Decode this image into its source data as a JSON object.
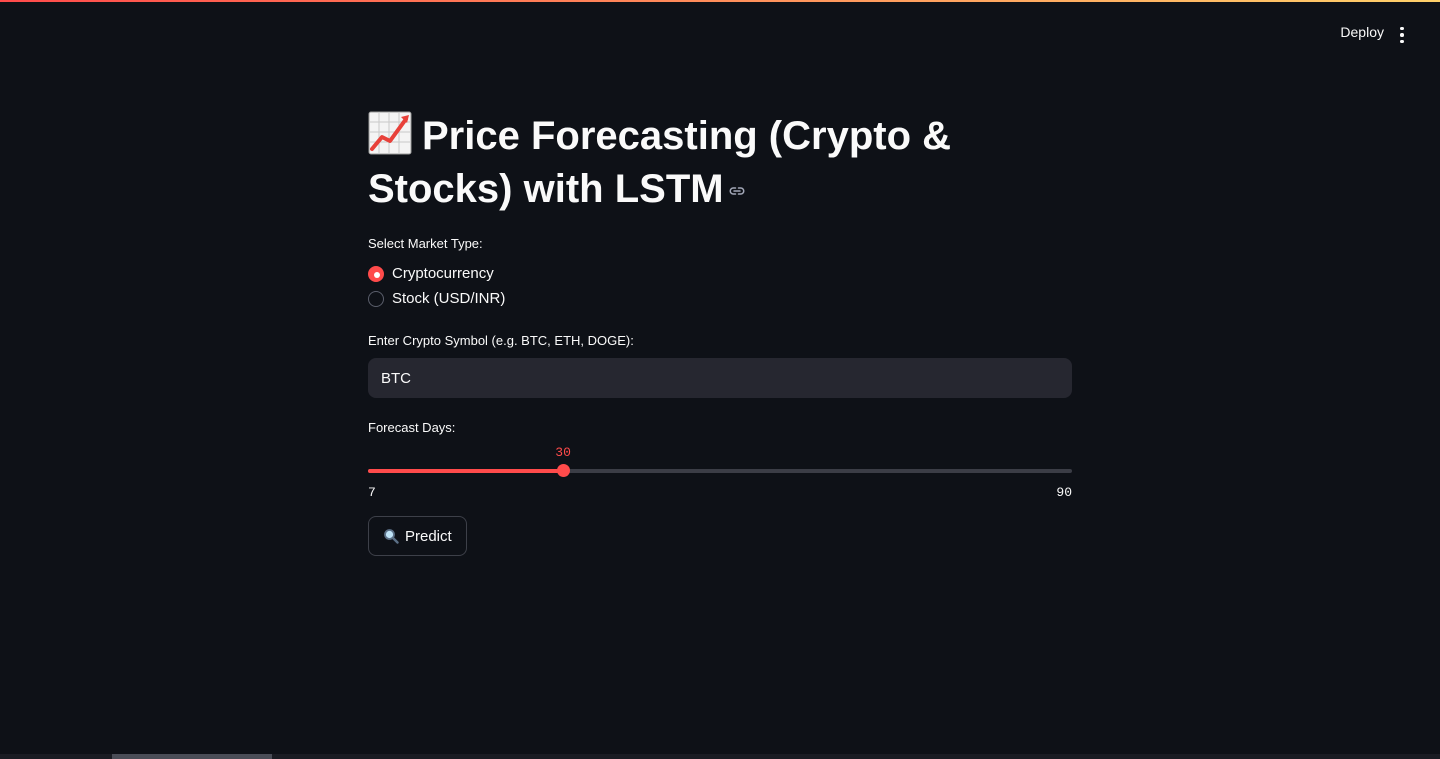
{
  "header": {
    "deploy_label": "Deploy",
    "menu_icon": "kebab-menu-icon"
  },
  "title": {
    "emoji_icon": "chart-increasing-icon",
    "text": "Price Forecasting (Crypto & Stocks) with LSTM",
    "link_icon": "link-icon"
  },
  "market_type": {
    "label": "Select Market Type:",
    "options": [
      "Cryptocurrency",
      "Stock (USD/INR)"
    ],
    "selected": "Cryptocurrency"
  },
  "symbol_input": {
    "label": "Enter Crypto Symbol (e.g. BTC, ETH, DOGE):",
    "value": "BTC"
  },
  "forecast_slider": {
    "label": "Forecast Days:",
    "value": 30,
    "min": 7,
    "max": 90
  },
  "predict_button": {
    "icon": "magnifying-glass-icon",
    "label": "Predict"
  },
  "colors": {
    "accent": "#ff4b4b",
    "background": "#0e1117",
    "input_bg": "#262730"
  }
}
